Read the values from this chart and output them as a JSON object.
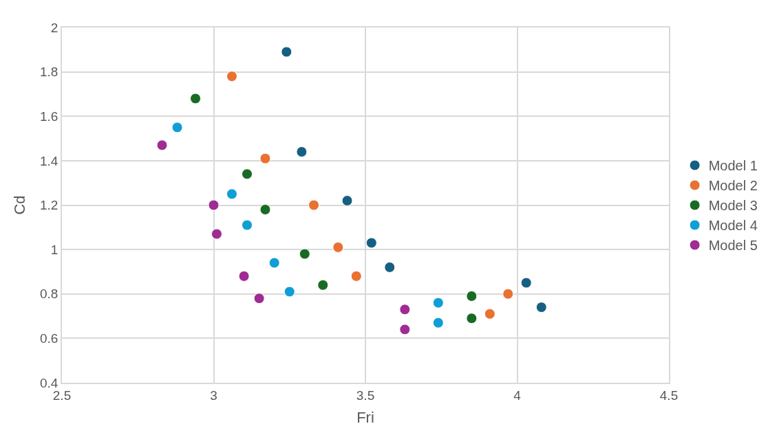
{
  "chart_data": {
    "type": "scatter",
    "xlabel": "Fri",
    "ylabel": "Cd",
    "xlim": [
      2.5,
      4.5
    ],
    "xticks": [
      2.5,
      3,
      3.5,
      4,
      4.5
    ],
    "ylim": [
      0.4,
      2
    ],
    "yticks": [
      0.4,
      0.6,
      0.8,
      1,
      1.2,
      1.4,
      1.6,
      1.8,
      2
    ],
    "grid": true,
    "legend": "right",
    "marker": "circle",
    "series": [
      {
        "name": "Model 1",
        "color": "#156082",
        "x": [
          3.24,
          3.29,
          3.44,
          3.52,
          3.58,
          4.03,
          4.08
        ],
        "values": [
          1.89,
          1.44,
          1.22,
          1.03,
          0.92,
          0.85,
          0.74
        ]
      },
      {
        "name": "Model 2",
        "color": "#e97132",
        "x": [
          3.06,
          3.17,
          3.33,
          3.41,
          3.47,
          3.97,
          3.91
        ],
        "values": [
          1.78,
          1.41,
          1.2,
          1.01,
          0.88,
          0.8,
          0.71
        ]
      },
      {
        "name": "Model 3",
        "color": "#196b24",
        "x": [
          2.94,
          3.11,
          3.17,
          3.3,
          3.36,
          3.85,
          3.85
        ],
        "values": [
          1.68,
          1.34,
          1.18,
          0.98,
          0.84,
          0.79,
          0.69
        ]
      },
      {
        "name": "Model 4",
        "color": "#0f9ed5",
        "x": [
          2.88,
          3.06,
          3.11,
          3.2,
          3.25,
          3.74,
          3.74
        ],
        "values": [
          1.55,
          1.25,
          1.11,
          0.94,
          0.81,
          0.76,
          0.67
        ]
      },
      {
        "name": "Model 5",
        "color": "#a02b93",
        "x": [
          2.83,
          3.0,
          3.01,
          3.1,
          3.15,
          3.63,
          3.63
        ],
        "values": [
          1.47,
          1.2,
          1.07,
          0.88,
          0.78,
          0.73,
          0.64
        ]
      }
    ]
  }
}
